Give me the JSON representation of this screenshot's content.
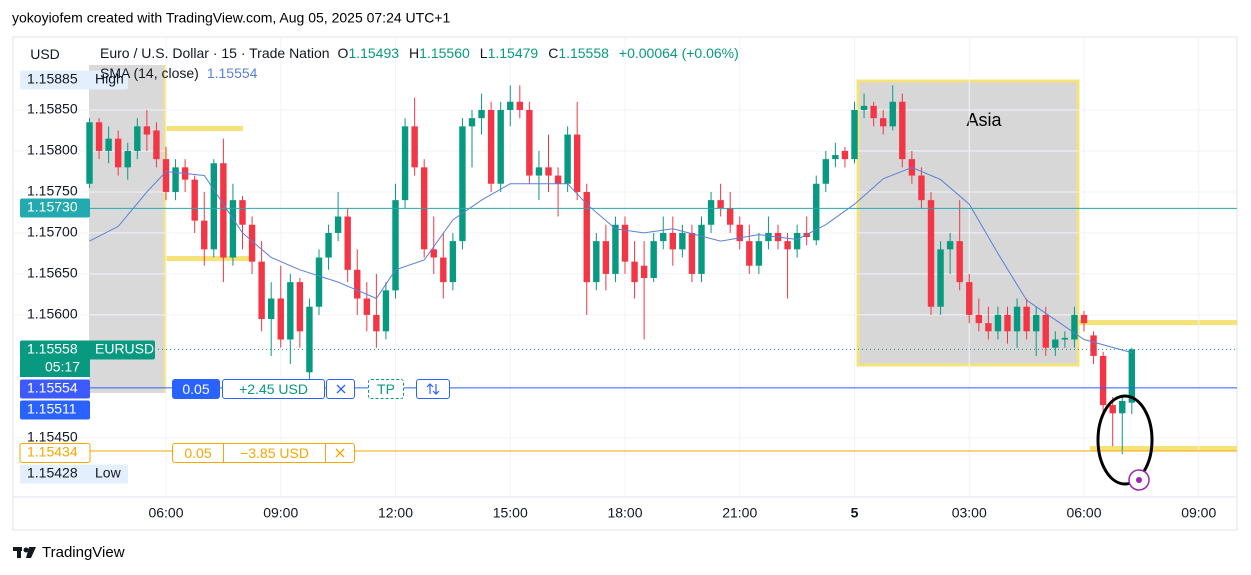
{
  "header": {
    "attribution": "yokoyiofem created with TradingView.com, Aug 05, 2025 07:24 UTC+1",
    "logo": "TradingView"
  },
  "chart_data": {
    "type": "candlestick",
    "title": "Euro / U.S. Dollar · 15 · Trade Nation",
    "currency": "USD",
    "ohlc_legend": [
      {
        "key": "O",
        "value": "1.15493"
      },
      {
        "key": "H",
        "value": "1.15560"
      },
      {
        "key": "L",
        "value": "1.15479"
      },
      {
        "key": "C",
        "value": "1.15558"
      }
    ],
    "change": "+0.00064 (+0.06%)",
    "up_color": "#089981",
    "down_color": "#f23645",
    "open": [
      1.1576,
      1.15835,
      1.158,
      1.15815,
      1.1578,
      1.158,
      1.1583,
      1.15825,
      1.1579,
      1.1575,
      1.1578,
      1.15765,
      1.15715,
      1.1568,
      1.15785,
      1.1567,
      1.1574,
      1.1571,
      1.15665,
      1.15595,
      1.1562,
      1.1557,
      1.1564,
      1.1553,
      1.1561,
      1.1567,
      1.157,
      1.1572,
      1.15655,
      1.1562,
      1.156,
      1.1558,
      1.1563,
      1.1574,
      1.1583,
      1.1578,
      1.1568,
      1.1567,
      1.1564,
      1.1569,
      1.1583,
      1.1584,
      1.1585,
      1.1576,
      1.1585,
      1.1586,
      1.1585,
      1.1577,
      1.1578,
      1.1577,
      1.1576,
      1.1582,
      1.1575,
      1.1564,
      1.1569,
      1.1565,
      1.1571,
      1.15665,
      1.1566,
      1.15645,
      1.1569,
      1.157,
      1.1568,
      1.157,
      1.1565,
      1.1571,
      1.1574,
      1.1573,
      1.1571,
      1.1569,
      1.1566,
      1.1569,
      1.157,
      1.1569,
      1.1568,
      1.157,
      1.15691,
      1.1576,
      1.1579,
      1.158,
      1.1579,
      1.1585,
      1.15855,
      1.1584,
      1.1583,
      1.1586,
      1.1579,
      1.1577,
      1.1574,
      1.1561,
      1.1568,
      1.1569,
      1.1564,
      1.156,
      1.1559,
      1.1558,
      1.156,
      1.1558,
      1.1561,
      1.1558,
      1.156,
      1.1556,
      1.1557,
      1.1557,
      1.156,
      1.15575,
      1.1555,
      1.1549,
      1.1548,
      1.15493
    ],
    "high": [
      1.1584,
      1.1584,
      1.1583,
      1.15825,
      1.1581,
      1.1584,
      1.1585,
      1.15835,
      1.15805,
      1.1579,
      1.1579,
      1.1577,
      1.1575,
      1.1579,
      1.15815,
      1.1576,
      1.15745,
      1.1572,
      1.1569,
      1.1564,
      1.1566,
      1.1565,
      1.15645,
      1.1562,
      1.1568,
      1.1571,
      1.1575,
      1.1573,
      1.1568,
      1.1564,
      1.1565,
      1.1564,
      1.1576,
      1.1584,
      1.15865,
      1.1579,
      1.1572,
      1.157,
      1.157,
      1.1584,
      1.1585,
      1.1587,
      1.1586,
      1.1586,
      1.1588,
      1.1588,
      1.1586,
      1.158,
      1.1582,
      1.1578,
      1.1583,
      1.1586,
      1.1576,
      1.157,
      1.1571,
      1.1572,
      1.1572,
      1.1569,
      1.1569,
      1.157,
      1.1572,
      1.1572,
      1.1571,
      1.1571,
      1.1572,
      1.1575,
      1.1576,
      1.1575,
      1.1572,
      1.1571,
      1.157,
      1.1572,
      1.1571,
      1.157,
      1.1571,
      1.1572,
      1.1577,
      1.158,
      1.1581,
      1.15805,
      1.1586,
      1.1587,
      1.1586,
      1.1585,
      1.1588,
      1.1587,
      1.158,
      1.1578,
      1.1575,
      1.1569,
      1.157,
      1.1574,
      1.1565,
      1.1562,
      1.1561,
      1.1561,
      1.1561,
      1.1562,
      1.1562,
      1.1561,
      1.1561,
      1.1558,
      1.1558,
      1.1561,
      1.15605,
      1.1558,
      1.15555,
      1.155,
      1.155,
      1.1556
    ],
    "low": [
      1.15755,
      1.1579,
      1.15785,
      1.1577,
      1.15765,
      1.1579,
      1.158,
      1.1578,
      1.1574,
      1.1574,
      1.1575,
      1.157,
      1.1566,
      1.1567,
      1.1564,
      1.1566,
      1.1568,
      1.1565,
      1.1558,
      1.1555,
      1.1556,
      1.1554,
      1.1556,
      1.1552,
      1.156,
      1.15655,
      1.1569,
      1.1564,
      1.156,
      1.1558,
      1.1556,
      1.1557,
      1.1562,
      1.1573,
      1.1577,
      1.1567,
      1.1565,
      1.1562,
      1.1563,
      1.1568,
      1.1578,
      1.1582,
      1.1575,
      1.1575,
      1.1583,
      1.1584,
      1.1576,
      1.1574,
      1.1575,
      1.1572,
      1.1575,
      1.1574,
      1.156,
      1.1563,
      1.1563,
      1.1564,
      1.1565,
      1.1562,
      1.1557,
      1.1564,
      1.1568,
      1.1566,
      1.1567,
      1.1564,
      1.1564,
      1.157,
      1.1572,
      1.157,
      1.1568,
      1.1565,
      1.1565,
      1.1568,
      1.1568,
      1.1562,
      1.1567,
      1.15685,
      1.15685,
      1.1575,
      1.1578,
      1.1578,
      1.15785,
      1.1584,
      1.1583,
      1.1582,
      1.15825,
      1.1578,
      1.1576,
      1.1573,
      1.156,
      1.156,
      1.1565,
      1.1563,
      1.1559,
      1.1558,
      1.1557,
      1.1557,
      1.15565,
      1.1556,
      1.1557,
      1.1555,
      1.1555,
      1.1555,
      1.1556,
      1.1556,
      1.1558,
      1.1554,
      1.1548,
      1.1544,
      1.1543,
      1.15479
    ],
    "close": [
      1.15835,
      1.158,
      1.15815,
      1.1578,
      1.158,
      1.1583,
      1.1582,
      1.1579,
      1.1575,
      1.1578,
      1.15765,
      1.15715,
      1.1568,
      1.15785,
      1.1567,
      1.1574,
      1.1571,
      1.15665,
      1.15595,
      1.1562,
      1.1557,
      1.1564,
      1.1558,
      1.1561,
      1.1567,
      1.157,
      1.1572,
      1.15655,
      1.1562,
      1.156,
      1.1558,
      1.1563,
      1.1574,
      1.1583,
      1.1578,
      1.1568,
      1.1567,
      1.1564,
      1.1569,
      1.1583,
      1.1584,
      1.1585,
      1.1576,
      1.1585,
      1.1586,
      1.1585,
      1.1577,
      1.1578,
      1.1577,
      1.1576,
      1.1582,
      1.1575,
      1.1564,
      1.1569,
      1.1565,
      1.1571,
      1.15665,
      1.1564,
      1.15645,
      1.1569,
      1.157,
      1.1568,
      1.157,
      1.1565,
      1.1571,
      1.1574,
      1.1573,
      1.1571,
      1.1569,
      1.1566,
      1.1569,
      1.157,
      1.1569,
      1.1568,
      1.157,
      1.15695,
      1.1576,
      1.1579,
      1.15795,
      1.1579,
      1.1585,
      1.15855,
      1.1584,
      1.1583,
      1.1586,
      1.1579,
      1.1577,
      1.1574,
      1.1561,
      1.1568,
      1.1569,
      1.1564,
      1.156,
      1.1559,
      1.1558,
      1.156,
      1.1558,
      1.1561,
      1.1558,
      1.156,
      1.1556,
      1.1557,
      1.15572,
      1.156,
      1.1559,
      1.1555,
      1.1549,
      1.1548,
      1.15495,
      1.15558
    ],
    "sma": {
      "name": "SMA (14, close)",
      "value_label": "1.15554",
      "color": "#5b7fd6",
      "x": [
        0,
        3,
        6,
        8,
        12,
        16,
        19,
        22,
        26,
        30,
        32,
        35,
        38,
        41,
        44,
        47,
        50,
        52,
        55,
        58,
        61,
        66,
        70,
        74,
        77,
        80,
        83,
        86,
        89,
        92,
        95,
        98,
        101,
        104,
        109
      ],
      "values": [
        1.1569,
        1.15708,
        1.1575,
        1.15775,
        1.1577,
        1.157,
        1.1567,
        1.15655,
        1.1564,
        1.1562,
        1.15655,
        1.15667,
        1.15716,
        1.1574,
        1.1576,
        1.1576,
        1.1576,
        1.15735,
        1.15705,
        1.157,
        1.15705,
        1.1569,
        1.15698,
        1.15692,
        1.1571,
        1.15735,
        1.15766,
        1.1578,
        1.15765,
        1.15735,
        1.15675,
        1.15618,
        1.15594,
        1.1557,
        1.15554
      ]
    },
    "xlim": [
      -8,
      120
    ],
    "xticks": [
      {
        "value": 8,
        "label": "06:00"
      },
      {
        "value": 20,
        "label": "09:00"
      },
      {
        "value": 32,
        "label": "12:00"
      },
      {
        "value": 44,
        "label": "15:00"
      },
      {
        "value": 56,
        "label": "18:00"
      },
      {
        "value": 68,
        "label": "21:00"
      },
      {
        "value": 80,
        "label": "5"
      },
      {
        "value": 92,
        "label": "03:00"
      },
      {
        "value": 104,
        "label": "06:00"
      },
      {
        "value": 116,
        "label": "09:00"
      }
    ],
    "ylim": [
      1.15384,
      1.15939
    ],
    "yticks": [
      {
        "value": 1.1545,
        "label": "1.15450"
      },
      {
        "value": 1.156,
        "label": "1.15600"
      },
      {
        "value": 1.1565,
        "label": "1.15650"
      },
      {
        "value": 1.157,
        "label": "1.15700"
      },
      {
        "value": 1.1575,
        "label": "1.15750"
      },
      {
        "value": 1.158,
        "label": "1.15800"
      },
      {
        "value": 1.1585,
        "label": "1.15850"
      }
    ],
    "grid": true,
    "levels": [
      {
        "label": "1.15885",
        "value": 1.15885,
        "tag": "High",
        "color": "#e3effd",
        "text_color": "#131722",
        "line": "none"
      },
      {
        "label": "1.15730",
        "value": 1.1573,
        "color": "#22aab0",
        "text_color": "#ffffff",
        "line": "solid"
      },
      {
        "label": "1.15558",
        "value": 1.15558,
        "tag": "EURUSD",
        "countdown": "05:17",
        "color": "#089981",
        "text_color": "#ffffff",
        "line": "dotted"
      },
      {
        "label": "1.15554",
        "value": 1.15554,
        "color": "#3d5afe",
        "text_color": "#ffffff",
        "line": "none"
      },
      {
        "label": "1.15511",
        "value": 1.15511,
        "color": "#2962ff",
        "text_color": "#ffffff",
        "line": "solid"
      },
      {
        "label": "1.15434",
        "value": 1.15434,
        "color": "#f7a600",
        "text_color": "#f7a600",
        "line": "solid"
      },
      {
        "label": "1.15428",
        "value": 1.15428,
        "tag": "Low",
        "color": "#e3effd",
        "text_color": "#131722",
        "line": "none"
      }
    ],
    "take_profit_order": {
      "qty": "0.05",
      "pnl": "+2.45 USD",
      "tp": "TP"
    },
    "stop_order": {
      "qty": "0.05",
      "pnl": "−3.85 USD"
    },
    "annotation": "Asia"
  }
}
